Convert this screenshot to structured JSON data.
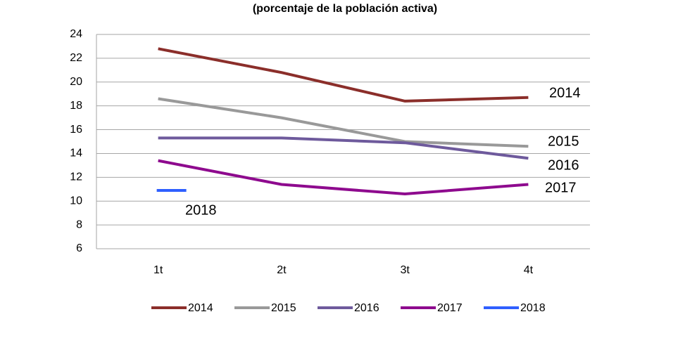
{
  "chart_data": {
    "type": "line",
    "title": "(porcentaje de la población activa)",
    "categories": [
      "1t",
      "2t",
      "3t",
      "4t"
    ],
    "series": [
      {
        "name": "2014",
        "color": "#8b2e2a",
        "values": [
          22.8,
          20.8,
          18.4,
          18.7
        ]
      },
      {
        "name": "2015",
        "color": "#999999",
        "values": [
          18.6,
          17.0,
          15.0,
          14.6
        ]
      },
      {
        "name": "2016",
        "color": "#6e5a9c",
        "values": [
          15.3,
          15.3,
          14.9,
          13.6
        ]
      },
      {
        "name": "2017",
        "color": "#8e0a8e",
        "values": [
          13.4,
          11.4,
          10.6,
          11.4
        ]
      },
      {
        "name": "2018",
        "color": "#2f5fff",
        "values": [
          10.9,
          null,
          null,
          null
        ]
      }
    ],
    "ylim": [
      6,
      24
    ],
    "yticks": [
      6,
      8,
      10,
      12,
      14,
      16,
      18,
      20,
      22,
      24
    ],
    "grid": true,
    "legend": "bottom"
  }
}
